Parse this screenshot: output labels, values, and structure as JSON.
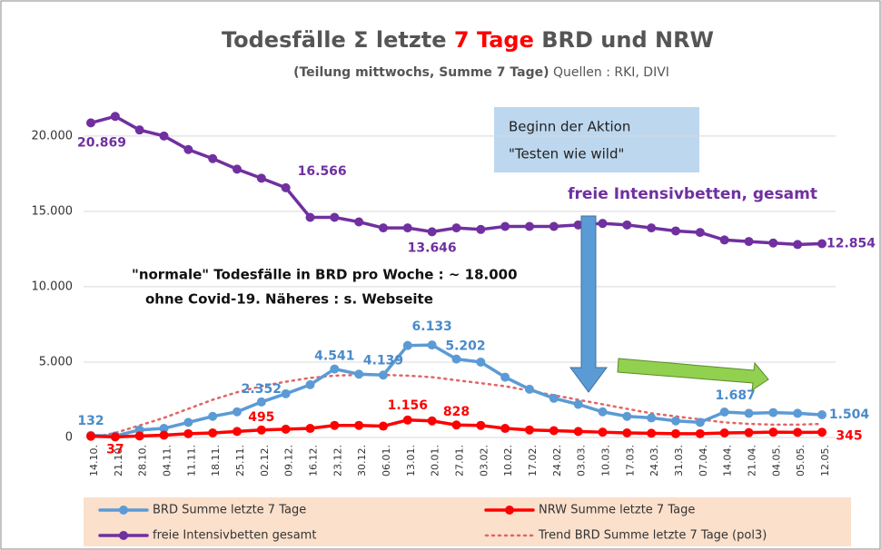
{
  "chart_data": {
    "type": "line",
    "title": [
      "Todesfälle Σ letzte ",
      "7 Tage",
      " BRD und NRW"
    ],
    "subtitle": [
      "(Teilung mittwochs, Summe 7 Tage)",
      " Quellen : RKI, DIVI"
    ],
    "annotations": {
      "box": [
        "Beginn der Aktion",
        "\"Testen wie wild\""
      ],
      "intensiv": "freie Intensivbetten, gesamt",
      "note": [
        "\"normale\" Todesfälle in BRD pro Woche : ~ 18.000",
        "ohne Covid-19. Näheres : s. Webseite"
      ]
    },
    "categories": [
      "14.10.",
      "21.10.",
      "28.10.",
      "04.11.",
      "11.11.",
      "18.11.",
      "25.11.",
      "02.12.",
      "09.12.",
      "16.12.",
      "23.12.",
      "30.12.",
      "06.01.",
      "13.01.",
      "20.01.",
      "27.01.",
      "03.02.",
      "10.02.",
      "17.02.",
      "24.02.",
      "03.03.",
      "10.03.",
      "17.03.",
      "24.03.",
      "31.03.",
      "07.04.",
      "14.04.",
      "21.04.",
      "04.05.",
      "05.05.",
      "12.05."
    ],
    "ylim": [
      0,
      23000
    ],
    "yticks": [
      0,
      {
        "value": 5000,
        "label": "5.000"
      },
      {
        "value": 10000,
        "label": "10.000"
      },
      {
        "value": 15000,
        "label": "15.000"
      },
      {
        "value": 20000,
        "label": "20.000"
      }
    ],
    "series": [
      {
        "name": "BRD Summe letzte 7 Tage",
        "color": "#5b9bd5",
        "marker": true,
        "values": [
          132,
          100,
          500,
          600,
          1000,
          1400,
          1700,
          2352,
          2900,
          3500,
          4541,
          4200,
          4139,
          6100,
          6133,
          5202,
          5000,
          4000,
          3200,
          2600,
          2200,
          1700,
          1400,
          1300,
          1100,
          1000,
          1687,
          1600,
          1650,
          1600,
          1504
        ],
        "value_labels": [
          "132",
          null,
          null,
          null,
          null,
          null,
          null,
          "2.352",
          null,
          null,
          "4.541",
          null,
          "4.139",
          null,
          "6.133",
          "5.202",
          null,
          null,
          null,
          null,
          null,
          null,
          null,
          null,
          null,
          null,
          "1.687",
          null,
          null,
          null,
          "1.504"
        ]
      },
      {
        "name": "NRW Summe letzte 7 Tage",
        "color": "#ff0000",
        "marker": true,
        "values": [
          80,
          37,
          100,
          150,
          250,
          300,
          400,
          495,
          550,
          600,
          800,
          800,
          750,
          1156,
          1100,
          828,
          800,
          600,
          500,
          450,
          400,
          350,
          300,
          280,
          250,
          250,
          300,
          320,
          350,
          340,
          345
        ],
        "value_labels": [
          null,
          "37",
          null,
          null,
          null,
          null,
          null,
          "495",
          null,
          null,
          null,
          null,
          null,
          "1.156",
          null,
          "828",
          null,
          null,
          null,
          null,
          null,
          null,
          null,
          null,
          null,
          null,
          null,
          null,
          null,
          null,
          "345"
        ]
      },
      {
        "name": "freie Intensivbetten gesamt",
        "color": "#7030a0",
        "marker": true,
        "values": [
          20869,
          21300,
          20400,
          20000,
          19100,
          18500,
          17800,
          17200,
          16566,
          14600,
          14600,
          14300,
          13900,
          13900,
          13646,
          13900,
          13800,
          14000,
          14000,
          14000,
          14100,
          14200,
          14100,
          13900,
          13700,
          13600,
          13100,
          13000,
          12900,
          12800,
          12854
        ],
        "value_labels": [
          "20.869",
          null,
          null,
          null,
          null,
          null,
          null,
          null,
          "16.566",
          null,
          null,
          null,
          null,
          null,
          "13.646",
          null,
          null,
          null,
          null,
          null,
          null,
          null,
          null,
          null,
          null,
          null,
          null,
          null,
          null,
          null,
          "12.854"
        ]
      },
      {
        "name": "Trend BRD Summe letzte 7 Tage (pol3)",
        "color": "#e06666",
        "marker": false,
        "dotted": true,
        "values": [
          0,
          300,
          800,
          1300,
          1900,
          2500,
          3000,
          3400,
          3700,
          3950,
          4100,
          4150,
          4150,
          4100,
          4000,
          3800,
          3600,
          3400,
          3100,
          2800,
          2500,
          2200,
          1900,
          1600,
          1400,
          1200,
          1000,
          900,
          850,
          850,
          900
        ]
      }
    ]
  }
}
